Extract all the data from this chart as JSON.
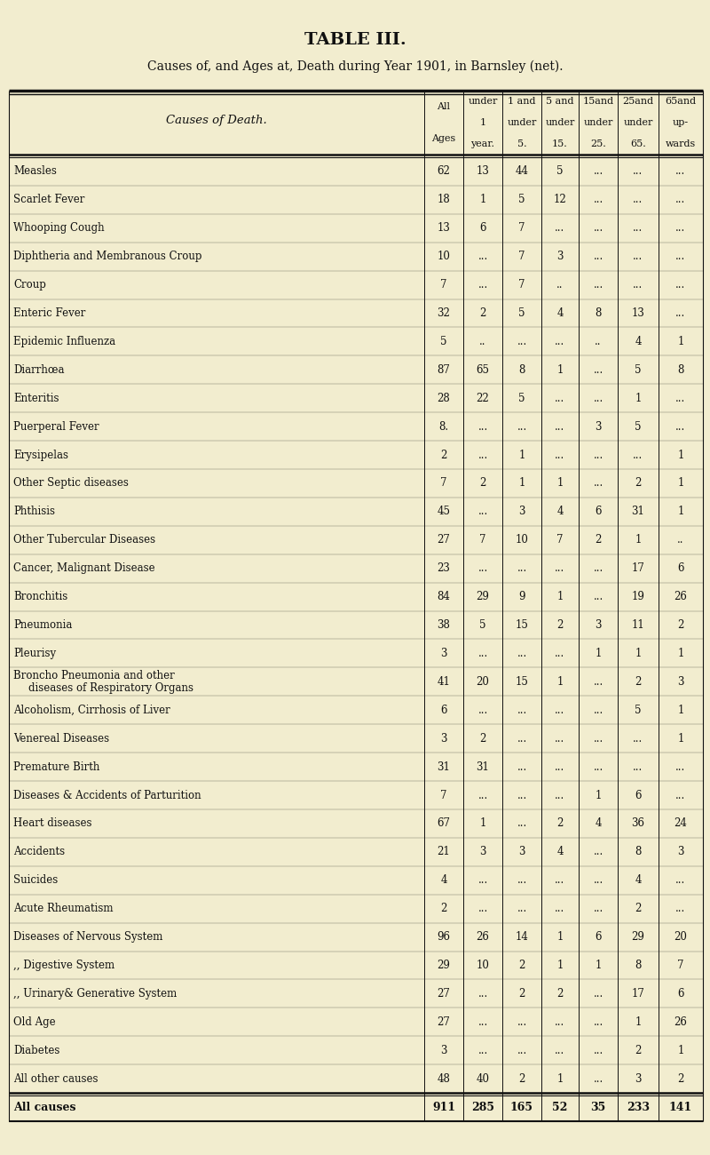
{
  "title1": "TABLE III.",
  "title2": "Causes of, and Ages at, Death during Year 1901, in Barnsley (net).",
  "num_col_texts": [
    [
      "All",
      "Ages"
    ],
    [
      "under",
      "1",
      "year."
    ],
    [
      "1 and",
      "under",
      "5."
    ],
    [
      "5 and",
      "under",
      "15."
    ],
    [
      "15and",
      "under",
      "25."
    ],
    [
      "25and",
      "under",
      "65."
    ],
    [
      "65and",
      "up-",
      "wards"
    ]
  ],
  "rows": [
    [
      "Measles",
      "62",
      "13",
      "44",
      "5",
      "...",
      "...",
      "..."
    ],
    [
      "Scarlet Fever",
      "18",
      "1",
      "5",
      "12",
      "...",
      "...",
      "..."
    ],
    [
      "Whooping Cough",
      "13",
      "6",
      "7",
      "...",
      "...",
      "...",
      "..."
    ],
    [
      "Diphtheria and Membranous Croup",
      "10",
      "...",
      "7",
      "3",
      "...",
      "...",
      "..."
    ],
    [
      "Croup",
      "7",
      "...",
      "7",
      "..",
      "...",
      "...",
      "..."
    ],
    [
      "Enteric Fever",
      "32",
      "2",
      "5",
      "4",
      "8",
      "13",
      "..."
    ],
    [
      "Epidemic Influenza",
      "5",
      "..",
      "...",
      "...",
      "..",
      "4",
      "1"
    ],
    [
      "Diarrhœa",
      "87",
      "65",
      "8",
      "1",
      "...",
      "5",
      "8"
    ],
    [
      "Enteritis",
      "28",
      "22",
      "5",
      "...",
      "...",
      "1",
      "..."
    ],
    [
      "Puerperal Fever",
      "8.",
      "...",
      "...",
      "...",
      "3",
      "5",
      "..."
    ],
    [
      "Erysipelas",
      "2",
      "...",
      "1",
      "...",
      "...",
      "...",
      "1"
    ],
    [
      "Other Septic diseases",
      "7",
      "2",
      "1",
      "1",
      "...",
      "2",
      "1"
    ],
    [
      "Phthisis",
      "45",
      "...",
      "3",
      "4",
      "6",
      "31",
      "1"
    ],
    [
      "Other Tubercular Diseases",
      "27",
      "7",
      "10",
      "7",
      "2",
      "1",
      ".."
    ],
    [
      "Cancer, Malignant Disease",
      "23",
      "...",
      "...",
      "...",
      "...",
      "17",
      "6"
    ],
    [
      "Bronchitis",
      "84",
      "29",
      "9",
      "1",
      "...",
      "19",
      "26"
    ],
    [
      "Pneumonia",
      "38",
      "5",
      "15",
      "2",
      "3",
      "11",
      "2"
    ],
    [
      "Pleurisy",
      "3",
      "...",
      "...",
      "...",
      "1",
      "1",
      "1"
    ],
    [
      "Broncho Pneumonia and other",
      "41",
      "20",
      "15",
      "1",
      "...",
      "2",
      "3"
    ],
    [
      "Alcoholism, Cirrhosis of Liver",
      "6",
      "...",
      "...",
      "...",
      "...",
      "5",
      "1"
    ],
    [
      "Venereal Diseases",
      "3",
      "2",
      "...",
      "...",
      "...",
      "...",
      "1"
    ],
    [
      "Premature Birth",
      "31",
      "31",
      "...",
      "...",
      "...",
      "...",
      "..."
    ],
    [
      "Diseases & Accidents of Parturition",
      "7",
      "...",
      "...",
      "...",
      "1",
      "6",
      "..."
    ],
    [
      "Heart diseases",
      "67",
      "1",
      "...",
      "2",
      "4",
      "36",
      "24"
    ],
    [
      "Accidents",
      "21",
      "3",
      "3",
      "4",
      "...",
      "8",
      "3"
    ],
    [
      "Suicides",
      "4",
      "...",
      "...",
      "...",
      "...",
      "4",
      "..."
    ],
    [
      "Acute Rheumatism",
      "2",
      "...",
      "...",
      "...",
      "...",
      "2",
      "..."
    ],
    [
      "Diseases of Nervous System",
      "96",
      "26",
      "14",
      "1",
      "6",
      "29",
      "20"
    ],
    [
      ",, Digestive System",
      "29",
      "10",
      "2",
      "1",
      "1",
      "8",
      "7"
    ],
    [
      ",, Urinary& Generative System",
      "27",
      "...",
      "2",
      "2",
      "...",
      "17",
      "6"
    ],
    [
      "Old Age",
      "27",
      "...",
      "...",
      "...",
      "...",
      "1",
      "26"
    ],
    [
      "Diabetes",
      "3",
      "...",
      "...",
      "...",
      "...",
      "2",
      "1"
    ],
    [
      "All other causes",
      "48",
      "40",
      "2",
      "1",
      "...",
      "3",
      "2"
    ],
    [
      "All causes",
      "911",
      "285",
      "165",
      "52",
      "35",
      "233",
      "141"
    ]
  ],
  "row_extra": {
    "18": "   diseases of Respiratory Organs"
  },
  "bg_color": "#f2edcf",
  "text_color": "#111111",
  "line_color": "#111111"
}
